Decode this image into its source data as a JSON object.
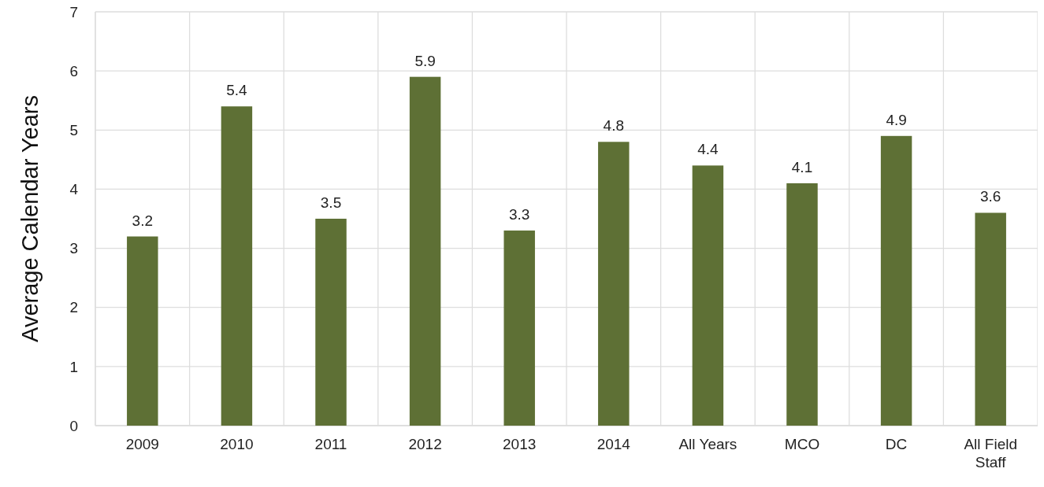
{
  "chart_data": {
    "type": "bar",
    "ylabel": "Average Calendar Years",
    "categories": [
      "2009",
      "2010",
      "2011",
      "2012",
      "2013",
      "2014",
      "All Years",
      "MCO",
      "DC",
      "All Field Staff"
    ],
    "values": [
      3.2,
      5.4,
      3.5,
      5.9,
      3.3,
      4.8,
      4.4,
      4.1,
      4.9,
      3.6
    ],
    "color": "#5e7035",
    "ylim": [
      0,
      7
    ],
    "yticks": [
      0,
      1,
      2,
      3,
      4,
      5,
      6,
      7
    ],
    "grid": true,
    "data_labels": true
  }
}
